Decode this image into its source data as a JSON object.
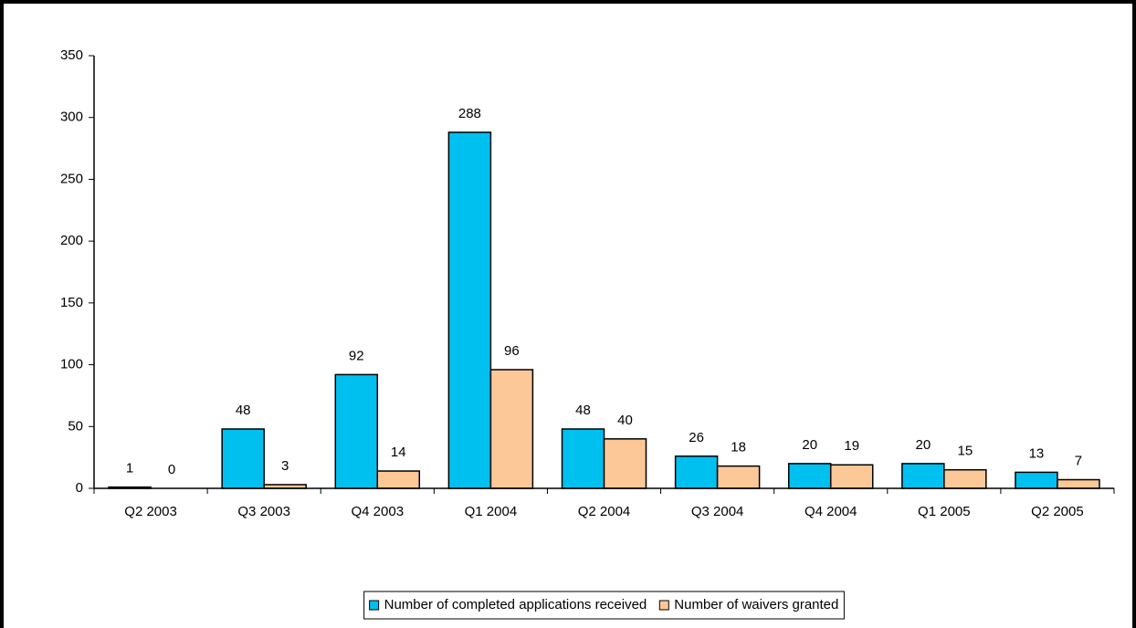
{
  "chart_data": {
    "type": "bar",
    "categories": [
      "Q2 2003",
      "Q3 2003",
      "Q4 2003",
      "Q1 2004",
      "Q2 2004",
      "Q3 2004",
      "Q4 2004",
      "Q1 2005",
      "Q2 2005"
    ],
    "series": [
      {
        "name": "Number of completed applications received",
        "color": "#00c0f0",
        "values": [
          1,
          48,
          92,
          288,
          48,
          26,
          20,
          20,
          13
        ]
      },
      {
        "name": "Number of waivers granted",
        "color": "#fcc898",
        "values": [
          0,
          3,
          14,
          96,
          40,
          18,
          19,
          15,
          7
        ]
      }
    ],
    "ylim": [
      0,
      350
    ],
    "yticks": [
      0,
      50,
      100,
      150,
      200,
      250,
      300,
      350
    ],
    "grid": false,
    "legend": "bottom"
  }
}
